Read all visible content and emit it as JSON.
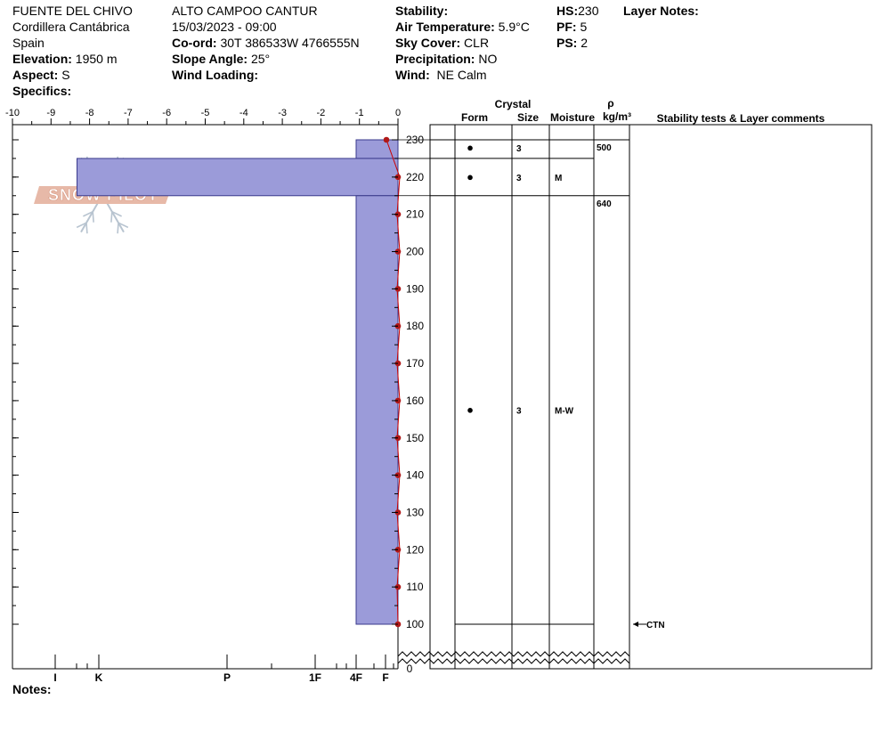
{
  "header": {
    "location": "FUENTE DEL CHIVO",
    "range": "Cordillera Cantábrica",
    "country": "Spain",
    "elevation_label": "Elevation:",
    "elevation_value": "1950 m",
    "aspect_label": "Aspect:",
    "aspect_value": "S",
    "specifics_label": "Specifics:",
    "site": "ALTO CAMPOO CANTUR",
    "datetime": "15/03/2023 - 09:00",
    "coord_label": "Co-ord:",
    "coord_value": "30T 386533W 4766555N",
    "slope_label": "Slope Angle:",
    "slope_value": "25°",
    "windload_label": "Wind Loading:",
    "stability_label": "Stability:",
    "airtemp_label": "Air Temperature:",
    "airtemp_value": "5.9°C",
    "sky_label": "Sky Cover:",
    "sky_value": "CLR",
    "precip_label": "Precipitation:",
    "precip_value": "NO",
    "wind_label": "Wind:",
    "wind_value": "NE Calm",
    "hs_label": "HS:",
    "hs_value": "230",
    "pf_label": "PF:",
    "pf_value": "5",
    "ps_label": "PS:",
    "ps_value": "2",
    "layer_notes_label": "Layer Notes:"
  },
  "notes_label": "Notes:",
  "logo_text": "SNOW PILOT",
  "columns": {
    "crystal": "Crystal",
    "form": "Form",
    "size": "Size",
    "moisture": "Moisture",
    "rho": "ρ",
    "density_unit": "kg/m³",
    "stability": "Stability tests & Layer comments"
  },
  "chart_data": {
    "type": "snow_profile",
    "temp_axis": {
      "ticks": [
        -10,
        -9,
        -8,
        -7,
        -6,
        -5,
        -4,
        -3,
        -2,
        -1,
        0
      ],
      "labels": [
        "-10",
        "-9",
        "-8",
        "-7",
        "-6",
        "-5",
        "-4",
        "-3",
        "-2",
        "-1",
        "0"
      ],
      "range": [
        -10,
        0
      ]
    },
    "height_axis": {
      "range": [
        100,
        230
      ],
      "ticks": [
        100,
        110,
        120,
        130,
        140,
        150,
        160,
        170,
        180,
        190,
        200,
        210,
        220,
        230
      ],
      "base_label": "0"
    },
    "hardness_axis": {
      "labels": [
        "I",
        "K",
        "P",
        "1F",
        "4F",
        "F"
      ],
      "values": [
        5,
        4,
        3,
        2,
        1,
        0
      ]
    },
    "hardness_layers": [
      {
        "top": 230,
        "bottom": 225,
        "hardness": 1
      },
      {
        "top": 225,
        "bottom": 215,
        "hardness": 4.5
      },
      {
        "top": 215,
        "bottom": 100,
        "hardness": 1
      }
    ],
    "temperature_profile": [
      {
        "height": 230,
        "temp": -0.3
      },
      {
        "height": 220,
        "temp": 0.0
      },
      {
        "height": 210,
        "temp": 0.0
      },
      {
        "height": 200,
        "temp": 0.0
      },
      {
        "height": 190,
        "temp": 0.0
      },
      {
        "height": 180,
        "temp": 0.0
      },
      {
        "height": 170,
        "temp": 0.0
      },
      {
        "height": 160,
        "temp": 0.0
      },
      {
        "height": 150,
        "temp": 0.0
      },
      {
        "height": 140,
        "temp": 0.0
      },
      {
        "height": 130,
        "temp": 0.0
      },
      {
        "height": 120,
        "temp": 0.0
      },
      {
        "height": 110,
        "temp": 0.0
      },
      {
        "height": 100,
        "temp": 0.0
      }
    ],
    "layer_boundaries": [
      230,
      225,
      215,
      100
    ],
    "layer_table": [
      {
        "top": 230,
        "bottom": 225,
        "form": "●",
        "size": "3",
        "moisture": ""
      },
      {
        "top": 225,
        "bottom": 215,
        "form": "●",
        "size": "3",
        "moisture": "M"
      },
      {
        "top": 215,
        "bottom": 100,
        "form": "●",
        "size": "3",
        "moisture": "M-W"
      }
    ],
    "densities": [
      {
        "height": 230,
        "value": "500"
      },
      {
        "height": 215,
        "value": "640"
      }
    ],
    "stability_tests": [
      {
        "height": 100,
        "label": "CTN"
      }
    ]
  },
  "colors": {
    "layer_fill": "#9b9bd9",
    "layer_stroke": "#3a3a8c",
    "temp_line": "#cc0000",
    "temp_point": "#b01818",
    "logo": "#e7b9a8",
    "logo_flake": "#b8c4d0"
  }
}
